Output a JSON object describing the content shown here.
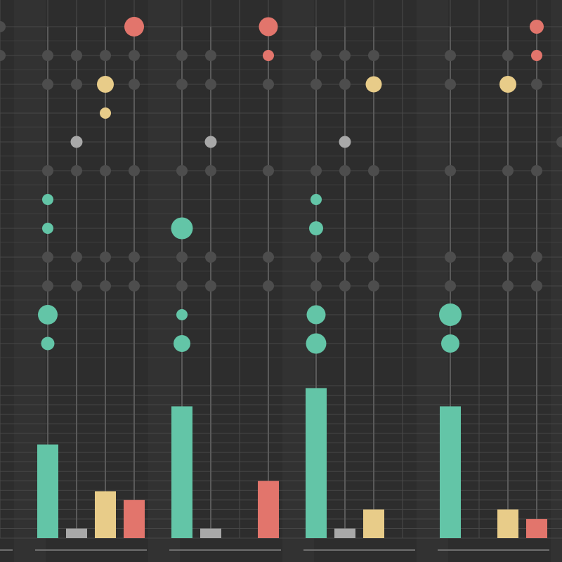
{
  "colors": {
    "background": "#2d2d2d",
    "grid": "#484848",
    "inactive_dot": "#4d4d4d",
    "teal": "#63c5a7",
    "gray": "#a8a8a8",
    "yellow": "#e8cc89",
    "red": "#e2756c"
  },
  "chart_data": {
    "type": "bar",
    "description_free": true,
    "groups": 4,
    "series": [
      {
        "color": "#63c5a7",
        "values": [
          118,
          166,
          189,
          166
        ]
      },
      {
        "color": "#a8a8a8",
        "values": [
          12,
          12,
          12,
          0
        ]
      },
      {
        "color": "#e8cc89",
        "values": [
          59,
          0,
          36,
          36
        ]
      },
      {
        "color": "#e2756c",
        "values": [
          48,
          72,
          0,
          24
        ]
      }
    ],
    "dot_matrix": {
      "rows": 12,
      "columns": [
        {
          "group": 0,
          "series": 0,
          "sizes": [
            0,
            0,
            0,
            0,
            0,
            0,
            0.4,
            0.4,
            0,
            0,
            1.0,
            0.55
          ]
        },
        {
          "group": 0,
          "series": 1,
          "sizes": [
            0,
            0,
            0,
            0,
            0.45,
            0,
            0,
            0,
            0,
            0,
            0,
            0
          ]
        },
        {
          "group": 0,
          "series": 2,
          "sizes": [
            0,
            0,
            0.8,
            0.4,
            0,
            0,
            0,
            0,
            0,
            0,
            0,
            0
          ]
        },
        {
          "group": 0,
          "series": 3,
          "sizes": [
            1.0,
            0,
            0,
            0,
            0,
            0,
            0,
            0,
            0,
            0,
            0,
            0
          ]
        },
        {
          "group": 1,
          "series": 0,
          "sizes": [
            0,
            0,
            0,
            0,
            0,
            0,
            0,
            1.15,
            0,
            0,
            0.4,
            0.8
          ]
        },
        {
          "group": 1,
          "series": 1,
          "sizes": [
            0,
            0,
            0,
            0,
            0.45,
            0,
            0,
            0,
            0,
            0,
            0,
            0
          ]
        },
        {
          "group": 1,
          "series": 2,
          "sizes": [
            0,
            0,
            0,
            0,
            0,
            0,
            0,
            0,
            0,
            0,
            0,
            0
          ]
        },
        {
          "group": 1,
          "series": 3,
          "sizes": [
            0.95,
            0.4,
            0,
            0,
            0,
            0,
            0,
            0,
            0,
            0,
            0,
            0
          ]
        },
        {
          "group": 2,
          "series": 0,
          "sizes": [
            0,
            0,
            0,
            0,
            0,
            0,
            0.4,
            0.6,
            0,
            0,
            0.95,
            1.05
          ]
        },
        {
          "group": 2,
          "series": 1,
          "sizes": [
            0,
            0,
            0,
            0,
            0.45,
            0,
            0,
            0,
            0,
            0,
            0,
            0
          ]
        },
        {
          "group": 2,
          "series": 2,
          "sizes": [
            0,
            0,
            0.75,
            0,
            0,
            0,
            0,
            0,
            0,
            0,
            0,
            0
          ]
        },
        {
          "group": 2,
          "series": 3,
          "sizes": [
            0,
            0,
            0,
            0,
            0,
            0,
            0,
            0,
            0,
            0,
            0,
            0
          ]
        },
        {
          "group": 3,
          "series": 0,
          "sizes": [
            0,
            0,
            0,
            0,
            0,
            0,
            0,
            0,
            0,
            0,
            1.2,
            0.9
          ]
        },
        {
          "group": 3,
          "series": 1,
          "sizes": [
            0,
            0,
            0,
            0,
            0,
            0,
            0,
            0,
            0,
            0,
            0,
            0
          ]
        },
        {
          "group": 3,
          "series": 2,
          "sizes": [
            0,
            0,
            0.8,
            0,
            0,
            0,
            0,
            0,
            0,
            0,
            0,
            0
          ]
        },
        {
          "group": 3,
          "series": 3,
          "sizes": [
            0.6,
            0.4,
            0,
            0,
            0,
            0,
            0,
            0,
            0,
            0,
            0,
            0
          ]
        }
      ]
    },
    "ylim": [
      0,
      200
    ],
    "grid": true,
    "title": "",
    "xlabel": "",
    "ylabel": ""
  }
}
